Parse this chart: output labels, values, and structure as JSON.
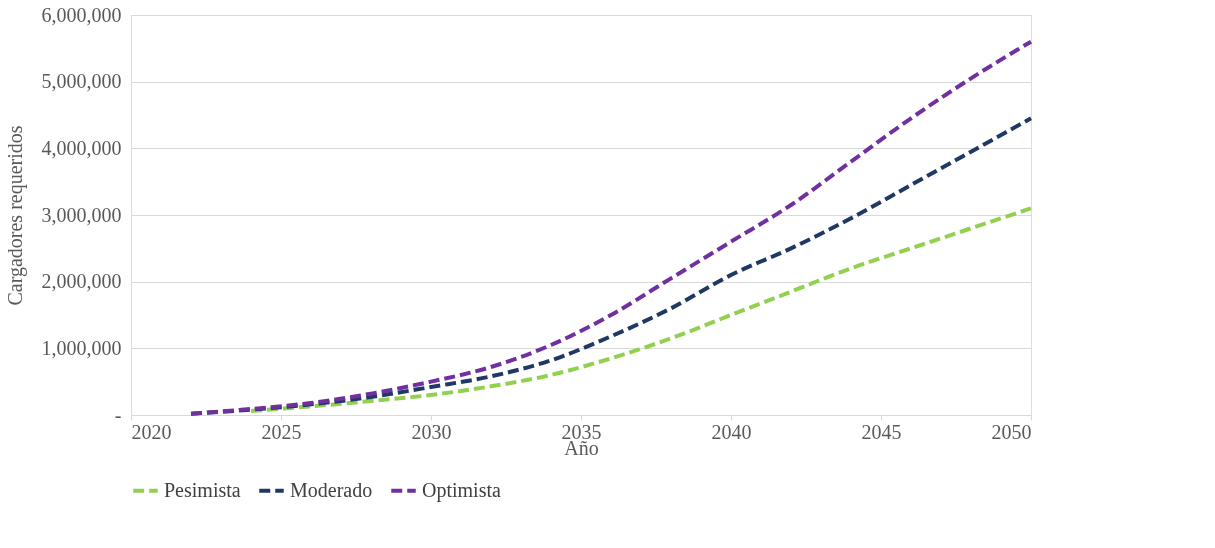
{
  "chart_data": {
    "type": "line",
    "xlabel": "Año",
    "ylabel": "Cargadores requeridos",
    "xlim": [
      2020,
      2050
    ],
    "xticks": [
      2020,
      2025,
      2030,
      2035,
      2040,
      2045,
      2050
    ],
    "ylim": [
      0,
      6000000
    ],
    "yticks": [
      {
        "value": 0,
        "label": "-"
      },
      {
        "value": 1000000,
        "label": "1,000,000"
      },
      {
        "value": 2000000,
        "label": "2,000,000"
      },
      {
        "value": 3000000,
        "label": "3,000,000"
      },
      {
        "value": 4000000,
        "label": "4,000,000"
      },
      {
        "value": 5000000,
        "label": "5,000,000"
      },
      {
        "value": 6000000,
        "label": "6,000,000"
      }
    ],
    "grid": "y",
    "legend": "bottom",
    "line_style": "dashed",
    "marker": "none",
    "x": [
      2022,
      2024,
      2026,
      2028,
      2030,
      2032,
      2034,
      2036,
      2038,
      2040,
      2042,
      2044,
      2046,
      2048,
      2050
    ],
    "series": [
      {
        "name": "Pesimista",
        "color": "#92d050",
        "values": [
          null,
          60000,
          130000,
          210000,
          300000,
          430000,
          600000,
          850000,
          1150000,
          1500000,
          1850000,
          2200000,
          2500000,
          2800000,
          3100000
        ]
      },
      {
        "name": "Moderado",
        "color": "#203864",
        "values": [
          20000,
          80000,
          160000,
          270000,
          420000,
          580000,
          820000,
          1180000,
          1600000,
          2100000,
          2500000,
          2950000,
          3450000,
          3950000,
          4450000
        ]
      },
      {
        "name": "Optimista",
        "color": "#7030a0",
        "values": [
          20000,
          90000,
          180000,
          320000,
          500000,
          720000,
          1050000,
          1500000,
          2050000,
          2600000,
          3150000,
          3800000,
          4450000,
          5050000,
          5600000
        ]
      }
    ]
  }
}
